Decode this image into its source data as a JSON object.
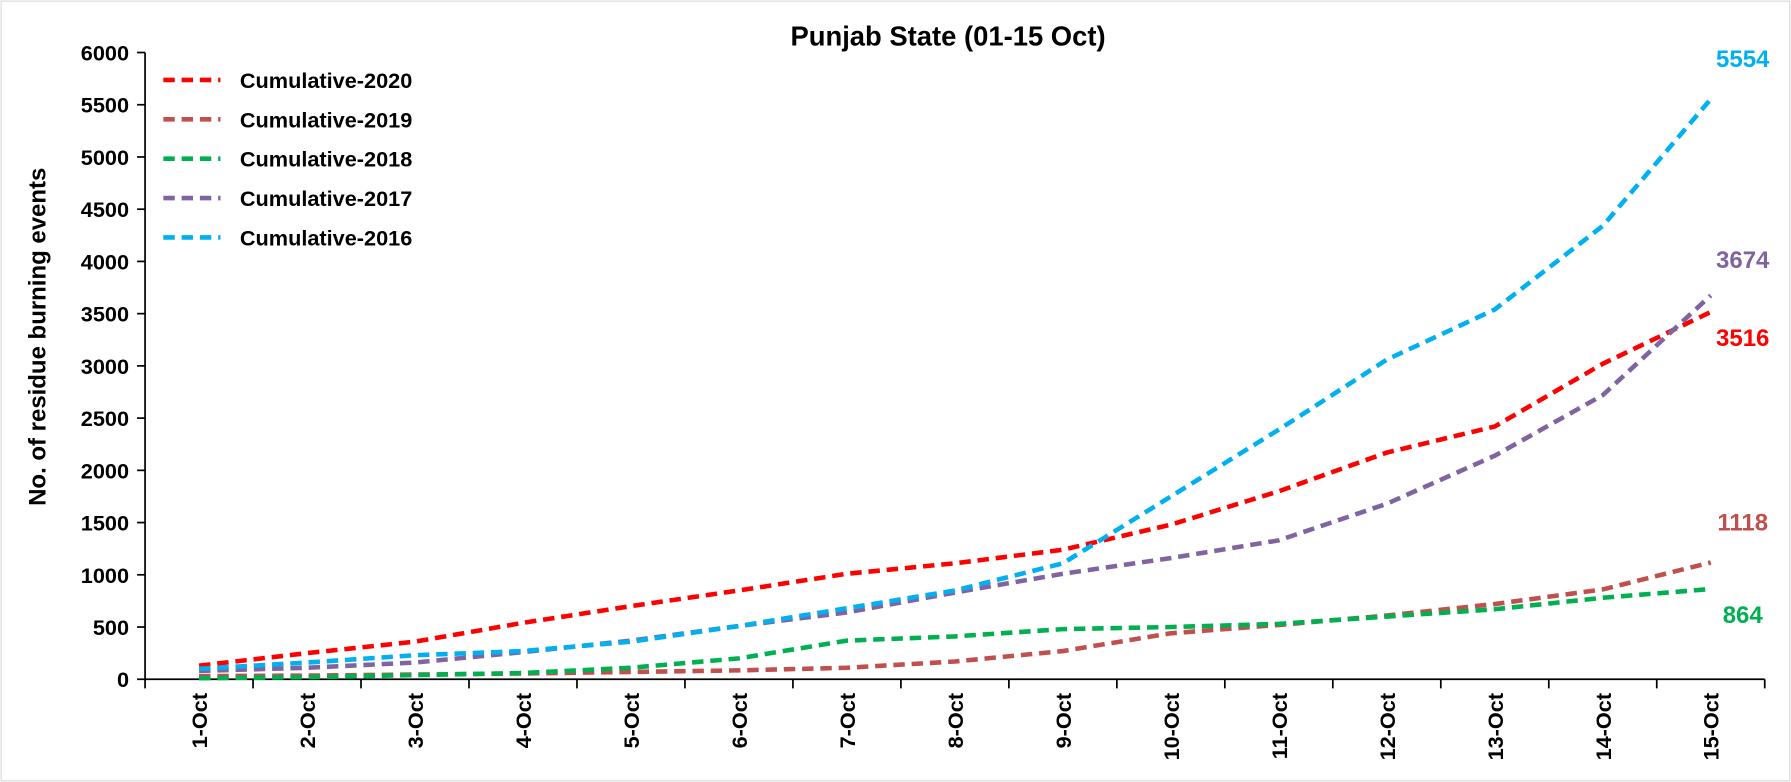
{
  "chart_data": {
    "type": "line",
    "title": "Punjab State (01-15 Oct)",
    "y_label": "No. of residue burning events",
    "categories": [
      "1-Oct",
      "2-Oct",
      "3-Oct",
      "4-Oct",
      "5-Oct",
      "6-Oct",
      "7-Oct",
      "8-Oct",
      "9-Oct",
      "10-Oct",
      "11-Oct",
      "12-Oct",
      "13-Oct",
      "14-Oct",
      "15-Oct"
    ],
    "series": [
      {
        "name": "Cumulative-2020",
        "color": "#ff0000",
        "values": [
          130,
          250,
          360,
          540,
          700,
          850,
          1010,
          1110,
          1240,
          1480,
          1800,
          2170,
          2420,
          3020,
          3516
        ]
      },
      {
        "name": "Cumulative-2019",
        "color": "#c0504d",
        "values": [
          30,
          35,
          45,
          55,
          70,
          85,
          110,
          170,
          270,
          440,
          520,
          610,
          720,
          860,
          1118
        ]
      },
      {
        "name": "Cumulative-2018",
        "color": "#00b050",
        "values": [
          10,
          20,
          40,
          60,
          110,
          200,
          370,
          410,
          480,
          500,
          530,
          600,
          670,
          780,
          864
        ]
      },
      {
        "name": "Cumulative-2017",
        "color": "#8064a2",
        "values": [
          80,
          110,
          160,
          260,
          370,
          510,
          640,
          830,
          1010,
          1160,
          1330,
          1680,
          2140,
          2720,
          3674
        ]
      },
      {
        "name": "Cumulative-2016",
        "color": "#00b0f0",
        "values": [
          100,
          160,
          230,
          270,
          360,
          510,
          680,
          850,
          1110,
          1750,
          2390,
          3060,
          3540,
          4340,
          5554
        ]
      }
    ],
    "ylim": [
      0,
      6000
    ],
    "yticks": [
      0,
      500,
      1000,
      1500,
      2000,
      2500,
      3000,
      3500,
      4000,
      4500,
      5000,
      5500,
      6000
    ],
    "legend": "upper left"
  }
}
